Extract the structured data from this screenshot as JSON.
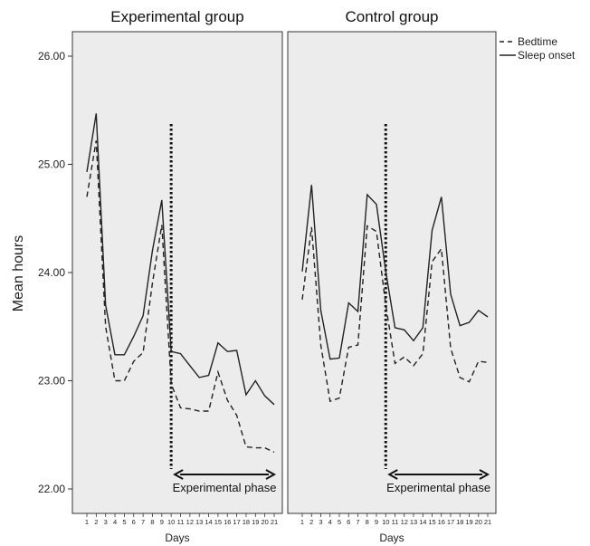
{
  "chart_data": {
    "type": "line",
    "ylabel": "Mean hours",
    "ylim": [
      22.0,
      26.0
    ],
    "y_ticks": [
      "22.00",
      "23.00",
      "24.00",
      "25.00",
      "26.00"
    ],
    "y_tick_values": [
      22,
      23,
      24,
      25,
      26
    ],
    "legend": {
      "placement": "top-right",
      "entries": [
        "Bedtime",
        "Sleep onset"
      ]
    },
    "panels": [
      {
        "title": "Experimental group",
        "xlabel": "Days",
        "x": [
          1,
          2,
          3,
          4,
          5,
          6,
          7,
          8,
          9,
          10,
          11,
          12,
          13,
          14,
          15,
          16,
          17,
          18,
          19,
          20,
          21
        ],
        "x_tick_labels": [
          "1",
          "2",
          "3",
          "4",
          "5",
          "6",
          "7",
          "8",
          "9",
          "10",
          "11",
          "12",
          "13",
          "14",
          "15",
          "16",
          "17",
          "18",
          "19",
          "20",
          "21"
        ],
        "divider_x": 10,
        "phase_label": "Experimental phase",
        "phase_range": [
          10,
          21
        ],
        "series": [
          {
            "name": "Bedtime",
            "style": "dashed",
            "values": [
              24.7,
              25.22,
              23.5,
              23.0,
              23.0,
              23.18,
              23.26,
              23.9,
              24.44,
              22.97,
              22.75,
              22.74,
              22.72,
              22.72,
              23.08,
              22.82,
              22.68,
              22.39,
              22.38,
              22.38,
              22.34
            ]
          },
          {
            "name": "Sleep onset",
            "style": "solid",
            "values": [
              24.93,
              25.47,
              23.7,
              23.24,
              23.24,
              23.41,
              23.6,
              24.2,
              24.67,
              23.27,
              23.25,
              23.14,
              23.03,
              23.05,
              23.35,
              23.27,
              23.28,
              22.87,
              23.0,
              22.86,
              22.78
            ]
          }
        ]
      },
      {
        "title": "Control group",
        "xlabel": "Days",
        "x": [
          1,
          2,
          3,
          4,
          5,
          6,
          7,
          8,
          9,
          10,
          11,
          12,
          13,
          14,
          15,
          16,
          17,
          18,
          19,
          20,
          21
        ],
        "x_tick_labels": [
          "1",
          "2",
          "3",
          "4",
          "5",
          "6",
          "7",
          "8",
          "9",
          "10",
          "11",
          "12",
          "13",
          "14",
          "15",
          "16",
          "17",
          "18",
          "19",
          "20",
          "21"
        ],
        "divider_x": 10,
        "phase_label": "Experimental phase",
        "phase_range": [
          10,
          21
        ],
        "series": [
          {
            "name": "Bedtime",
            "style": "dashed",
            "values": [
              23.75,
              24.42,
              23.33,
              22.81,
              22.84,
              23.31,
              23.33,
              24.43,
              24.38,
              23.7,
              23.16,
              23.22,
              23.14,
              23.25,
              24.1,
              24.22,
              23.3,
              23.03,
              22.99,
              23.18,
              23.17
            ]
          },
          {
            "name": "Sleep onset",
            "style": "solid",
            "values": [
              24.01,
              24.81,
              23.65,
              23.2,
              23.21,
              23.72,
              23.64,
              24.72,
              24.63,
              24.01,
              23.49,
              23.47,
              23.37,
              23.49,
              24.39,
              24.7,
              23.8,
              23.51,
              23.54,
              23.65,
              23.59
            ]
          }
        ]
      }
    ]
  }
}
